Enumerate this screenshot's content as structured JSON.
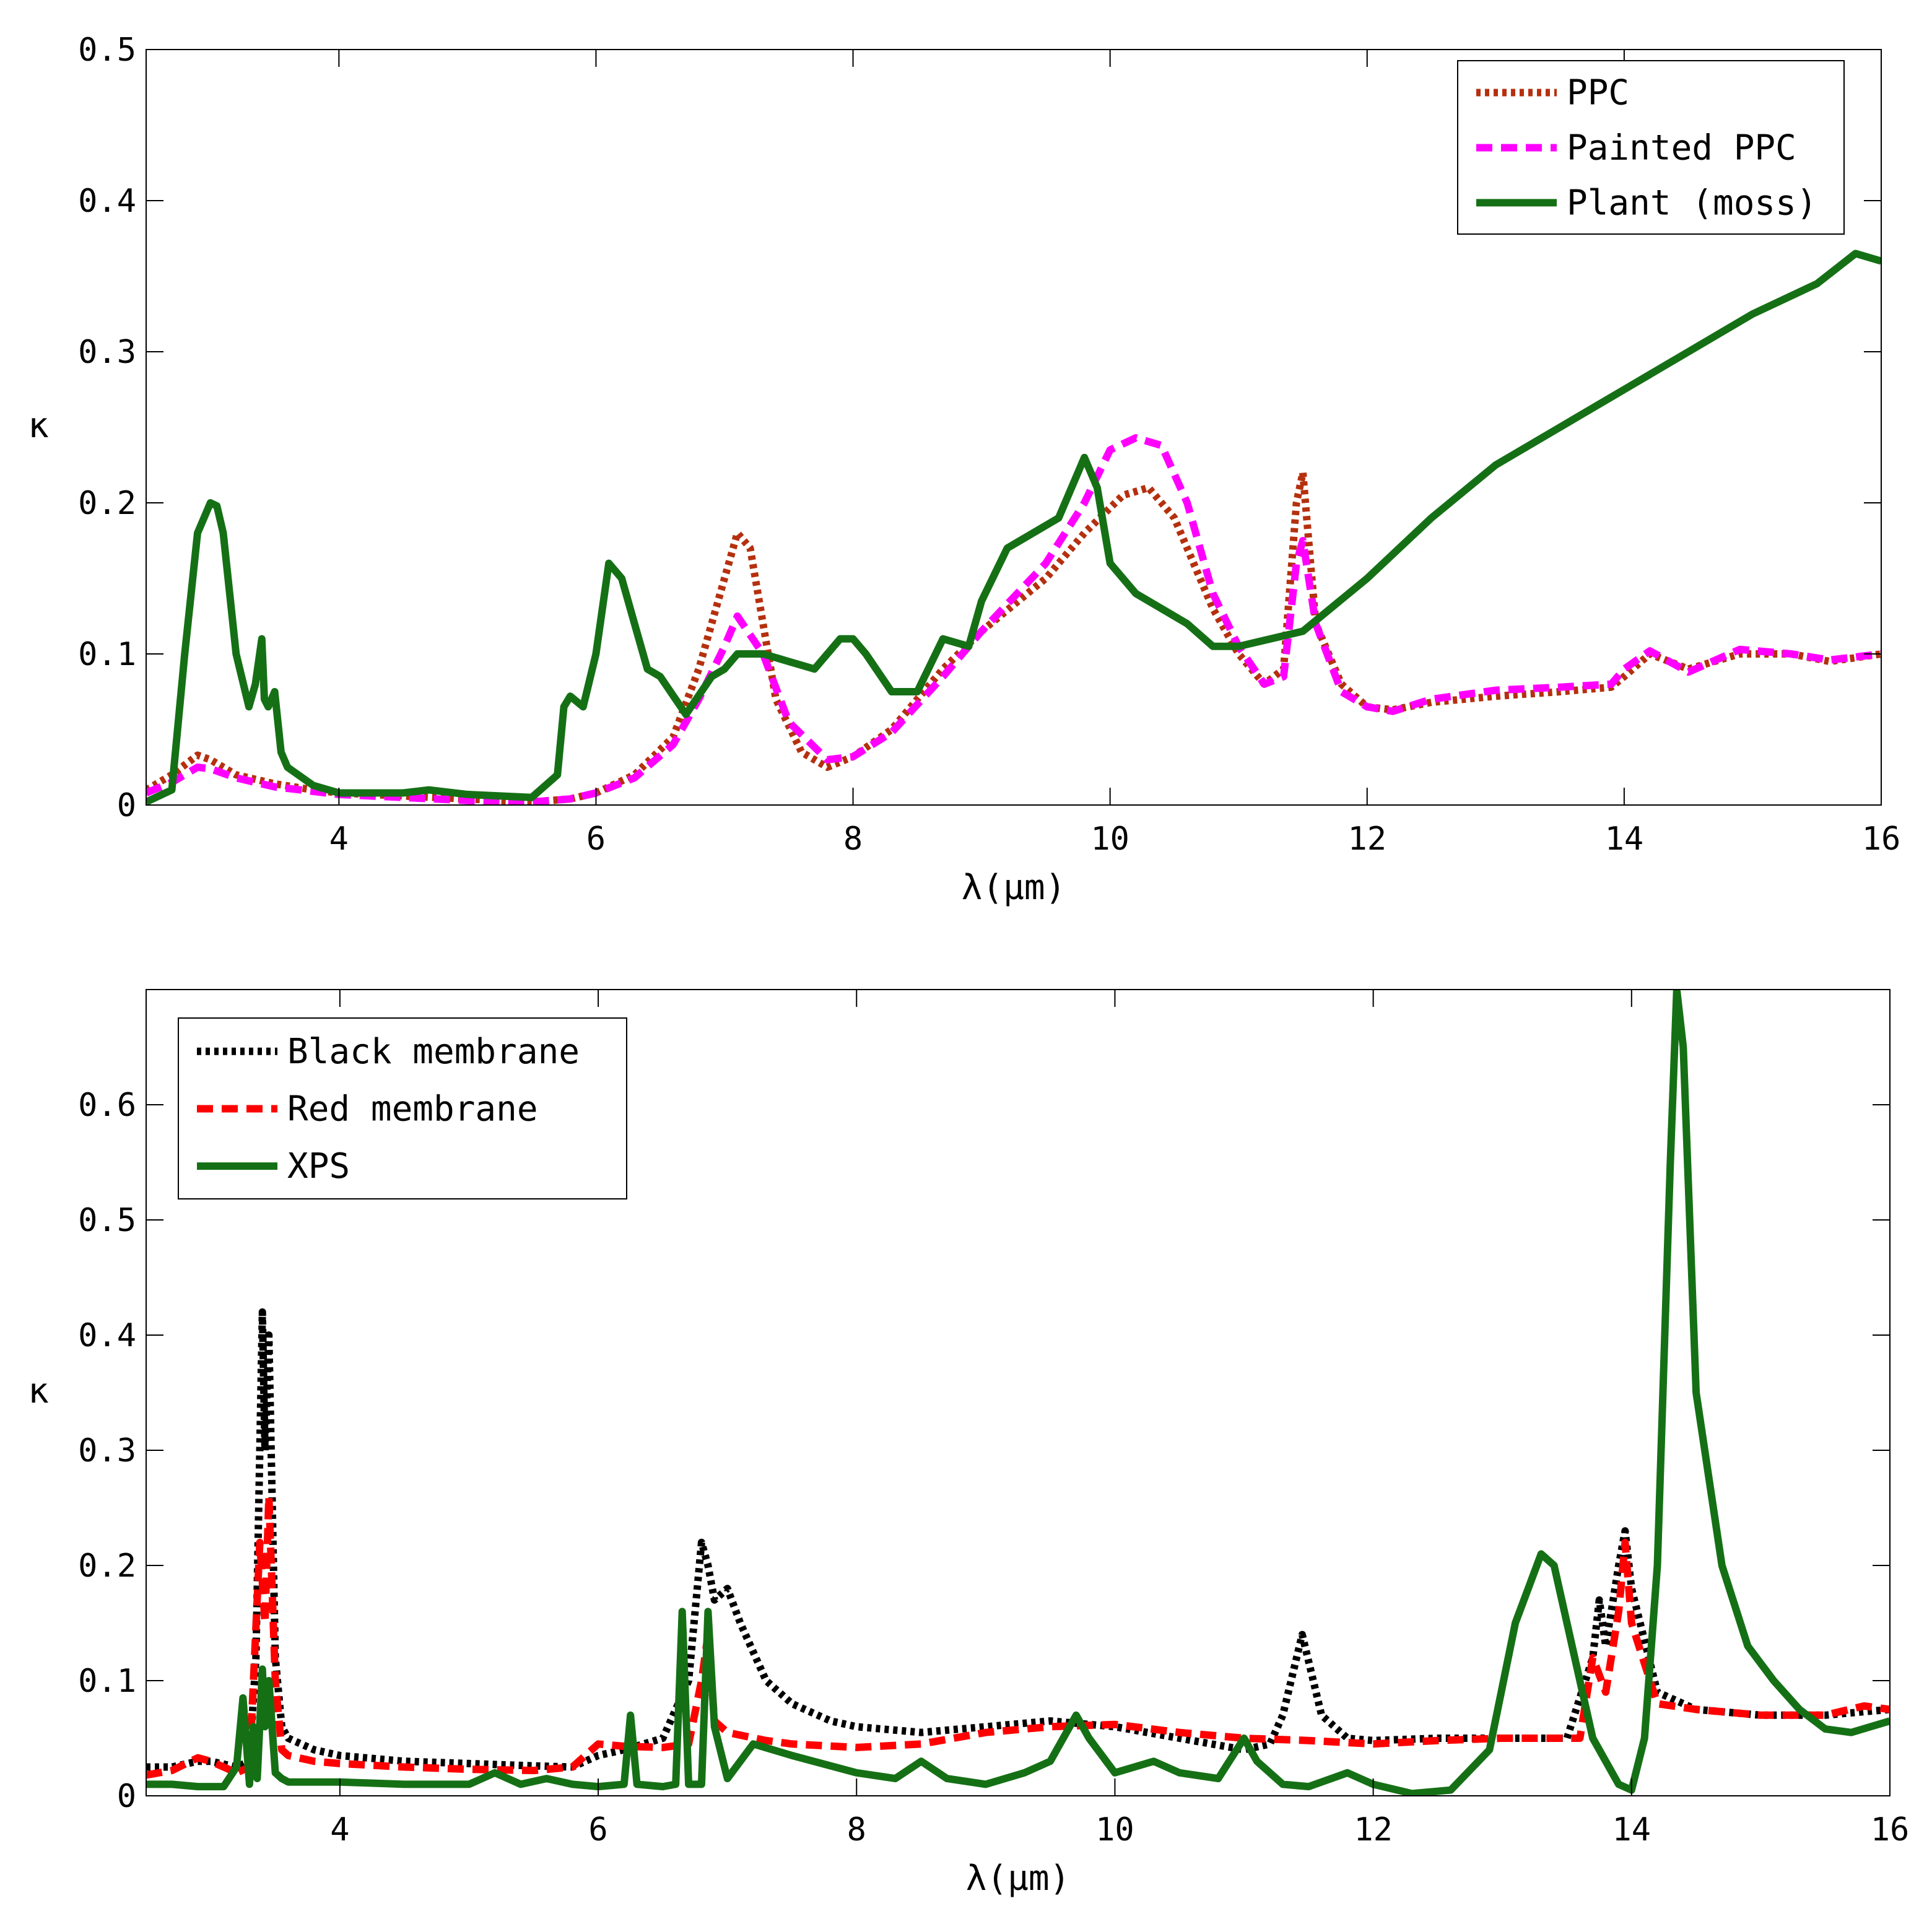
{
  "chart_data": [
    {
      "type": "line",
      "xlabel": "λ(μm)",
      "ylabel": "κ",
      "xlim": [
        2.5,
        16
      ],
      "ylim": [
        0,
        0.5
      ],
      "xticks": [
        4,
        6,
        8,
        10,
        12,
        14,
        16
      ],
      "yticks": [
        0,
        0.1,
        0.2,
        0.3,
        0.4,
        0.5
      ],
      "ytick_labels": [
        "0",
        "0.1",
        "0.2",
        "0.3",
        "0.4",
        "0.5"
      ],
      "legend_position": "top-right",
      "grid": false,
      "series": [
        {
          "name": "PPC",
          "color": "#b5300e",
          "style": "dotted",
          "x": [
            2.5,
            2.7,
            2.9,
            3.0,
            3.2,
            3.5,
            3.8,
            4.0,
            4.5,
            5.0,
            5.5,
            5.8,
            6.0,
            6.3,
            6.6,
            6.8,
            7.0,
            7.1,
            7.2,
            7.4,
            7.6,
            7.8,
            8.0,
            8.3,
            8.7,
            9.0,
            9.5,
            9.8,
            10.1,
            10.3,
            10.5,
            10.8,
            11.0,
            11.2,
            11.35,
            11.45,
            11.5,
            11.6,
            11.8,
            12.0,
            12.2,
            12.5,
            13.0,
            13.5,
            13.9,
            14.0,
            14.2,
            14.5,
            14.9,
            15.3,
            15.6,
            16.0
          ],
          "y": [
            0.01,
            0.02,
            0.033,
            0.03,
            0.02,
            0.014,
            0.01,
            0.008,
            0.006,
            0.004,
            0.002,
            0.004,
            0.008,
            0.02,
            0.045,
            0.09,
            0.15,
            0.18,
            0.17,
            0.07,
            0.035,
            0.025,
            0.032,
            0.05,
            0.09,
            0.115,
            0.15,
            0.18,
            0.205,
            0.21,
            0.19,
            0.13,
            0.1,
            0.08,
            0.09,
            0.2,
            0.22,
            0.12,
            0.08,
            0.065,
            0.063,
            0.068,
            0.072,
            0.075,
            0.078,
            0.085,
            0.1,
            0.09,
            0.1,
            0.1,
            0.095,
            0.1
          ]
        },
        {
          "name": "Painted PPC",
          "color": "#ff00ff",
          "style": "dashed",
          "x": [
            2.5,
            2.7,
            2.9,
            3.0,
            3.2,
            3.5,
            3.8,
            4.0,
            4.5,
            5.0,
            5.5,
            5.8,
            6.0,
            6.3,
            6.6,
            6.8,
            7.0,
            7.1,
            7.3,
            7.5,
            7.8,
            8.0,
            8.3,
            8.7,
            9.0,
            9.5,
            9.8,
            10.0,
            10.2,
            10.4,
            10.6,
            10.8,
            11.0,
            11.2,
            11.35,
            11.45,
            11.5,
            11.6,
            11.8,
            12.0,
            12.2,
            12.5,
            13.0,
            13.5,
            13.9,
            14.0,
            14.2,
            14.5,
            14.9,
            15.3,
            15.6,
            16.0
          ],
          "y": [
            0.008,
            0.015,
            0.025,
            0.024,
            0.018,
            0.012,
            0.009,
            0.007,
            0.005,
            0.003,
            0.002,
            0.004,
            0.008,
            0.018,
            0.04,
            0.07,
            0.105,
            0.125,
            0.1,
            0.055,
            0.03,
            0.032,
            0.048,
            0.085,
            0.115,
            0.16,
            0.2,
            0.235,
            0.243,
            0.238,
            0.2,
            0.14,
            0.105,
            0.08,
            0.085,
            0.16,
            0.175,
            0.12,
            0.075,
            0.065,
            0.062,
            0.07,
            0.076,
            0.078,
            0.08,
            0.09,
            0.102,
            0.088,
            0.103,
            0.1,
            0.096,
            0.1
          ]
        },
        {
          "name": "Plant (moss)",
          "color": "#157015",
          "style": "solid",
          "x": [
            2.5,
            2.7,
            2.8,
            2.9,
            3.0,
            3.05,
            3.1,
            3.2,
            3.3,
            3.35,
            3.4,
            3.42,
            3.45,
            3.5,
            3.55,
            3.6,
            3.8,
            4.0,
            4.5,
            4.7,
            5.0,
            5.5,
            5.7,
            5.75,
            5.8,
            5.9,
            6.0,
            6.1,
            6.2,
            6.3,
            6.4,
            6.5,
            6.7,
            6.9,
            7.0,
            7.1,
            7.3,
            7.5,
            7.7,
            7.9,
            8.0,
            8.1,
            8.3,
            8.5,
            8.7,
            8.9,
            9.0,
            9.2,
            9.4,
            9.6,
            9.8,
            9.9,
            10.0,
            10.2,
            10.4,
            10.6,
            10.8,
            11.0,
            11.5,
            12.0,
            12.5,
            13.0,
            13.5,
            14.0,
            14.5,
            15.0,
            15.5,
            15.8,
            16.0
          ],
          "y": [
            0.002,
            0.01,
            0.1,
            0.18,
            0.2,
            0.198,
            0.18,
            0.1,
            0.065,
            0.08,
            0.11,
            0.07,
            0.065,
            0.075,
            0.035,
            0.025,
            0.013,
            0.008,
            0.008,
            0.01,
            0.007,
            0.005,
            0.02,
            0.065,
            0.072,
            0.065,
            0.1,
            0.16,
            0.15,
            0.12,
            0.09,
            0.085,
            0.06,
            0.085,
            0.09,
            0.1,
            0.1,
            0.095,
            0.09,
            0.11,
            0.11,
            0.1,
            0.075,
            0.075,
            0.11,
            0.105,
            0.135,
            0.17,
            0.18,
            0.19,
            0.23,
            0.21,
            0.16,
            0.14,
            0.13,
            0.12,
            0.105,
            0.105,
            0.115,
            0.15,
            0.19,
            0.225,
            0.25,
            0.275,
            0.3,
            0.325,
            0.345,
            0.365,
            0.36
          ]
        }
      ]
    },
    {
      "type": "line",
      "xlabel": "λ(μm)",
      "ylabel": "κ",
      "xlim": [
        2.5,
        16
      ],
      "ylim": [
        0,
        0.7
      ],
      "xticks": [
        4,
        6,
        8,
        10,
        12,
        14,
        16
      ],
      "yticks": [
        0,
        0.1,
        0.2,
        0.3,
        0.4,
        0.5,
        0.6
      ],
      "ytick_labels": [
        "0",
        "0.1",
        "0.2",
        "0.3",
        "0.4",
        "0.5",
        "0.6"
      ],
      "legend_position": "top-left",
      "grid": false,
      "series": [
        {
          "name": "Black membrane",
          "color": "#000000",
          "style": "dotted",
          "x": [
            2.5,
            2.7,
            2.9,
            3.0,
            3.2,
            3.3,
            3.35,
            3.4,
            3.42,
            3.45,
            3.5,
            3.55,
            3.6,
            3.8,
            4.0,
            4.5,
            5.0,
            5.5,
            5.8,
            6.0,
            6.2,
            6.5,
            6.7,
            6.8,
            6.85,
            6.9,
            7.0,
            7.1,
            7.3,
            7.5,
            7.8,
            8.0,
            8.5,
            9.0,
            9.5,
            10.0,
            10.5,
            11.0,
            11.2,
            11.3,
            11.45,
            11.6,
            11.8,
            12.0,
            12.5,
            13.0,
            13.5,
            13.7,
            13.75,
            13.8,
            13.9,
            13.95,
            14.0,
            14.2,
            14.5,
            15.0,
            15.5,
            16.0
          ],
          "y": [
            0.025,
            0.025,
            0.03,
            0.03,
            0.025,
            0.03,
            0.12,
            0.42,
            0.3,
            0.4,
            0.12,
            0.06,
            0.05,
            0.04,
            0.035,
            0.03,
            0.028,
            0.026,
            0.025,
            0.035,
            0.04,
            0.05,
            0.1,
            0.22,
            0.2,
            0.17,
            0.18,
            0.15,
            0.1,
            0.08,
            0.065,
            0.06,
            0.055,
            0.06,
            0.065,
            0.06,
            0.05,
            0.04,
            0.045,
            0.07,
            0.14,
            0.07,
            0.05,
            0.048,
            0.05,
            0.05,
            0.05,
            0.12,
            0.17,
            0.13,
            0.2,
            0.23,
            0.18,
            0.09,
            0.075,
            0.07,
            0.07,
            0.075
          ]
        },
        {
          "name": "Red membrane",
          "color": "#ff0000",
          "style": "dashed",
          "x": [
            2.5,
            2.7,
            2.9,
            3.0,
            3.2,
            3.3,
            3.38,
            3.42,
            3.45,
            3.5,
            3.55,
            3.6,
            3.8,
            4.0,
            4.5,
            5.0,
            5.5,
            5.8,
            6.0,
            6.2,
            6.5,
            6.7,
            6.8,
            6.85,
            6.9,
            7.0,
            7.3,
            7.5,
            8.0,
            8.5,
            9.0,
            9.5,
            10.0,
            10.5,
            11.0,
            11.5,
            12.0,
            12.5,
            13.0,
            13.6,
            13.7,
            13.8,
            13.9,
            13.95,
            14.0,
            14.2,
            14.5,
            15.0,
            15.5,
            15.8,
            16.0
          ],
          "y": [
            0.018,
            0.022,
            0.033,
            0.03,
            0.02,
            0.025,
            0.22,
            0.15,
            0.26,
            0.1,
            0.04,
            0.035,
            0.03,
            0.028,
            0.025,
            0.023,
            0.022,
            0.025,
            0.045,
            0.043,
            0.042,
            0.045,
            0.1,
            0.14,
            0.065,
            0.055,
            0.048,
            0.045,
            0.042,
            0.045,
            0.055,
            0.06,
            0.062,
            0.055,
            0.05,
            0.048,
            0.045,
            0.048,
            0.05,
            0.05,
            0.12,
            0.09,
            0.16,
            0.22,
            0.15,
            0.08,
            0.075,
            0.07,
            0.07,
            0.078,
            0.075
          ]
        },
        {
          "name": "XPS",
          "color": "#157015",
          "style": "solid",
          "x": [
            2.5,
            2.7,
            2.9,
            3.1,
            3.2,
            3.25,
            3.3,
            3.33,
            3.36,
            3.4,
            3.42,
            3.45,
            3.5,
            3.55,
            3.6,
            3.8,
            4.0,
            4.5,
            5.0,
            5.2,
            5.4,
            5.6,
            5.8,
            6.0,
            6.2,
            6.25,
            6.3,
            6.5,
            6.6,
            6.65,
            6.7,
            6.8,
            6.85,
            6.9,
            7.0,
            7.2,
            7.5,
            8.0,
            8.3,
            8.5,
            8.7,
            9.0,
            9.3,
            9.5,
            9.7,
            9.8,
            10.0,
            10.3,
            10.5,
            10.8,
            11.0,
            11.1,
            11.3,
            11.5,
            11.8,
            12.0,
            12.3,
            12.6,
            12.9,
            13.1,
            13.3,
            13.4,
            13.5,
            13.7,
            13.9,
            14.0,
            14.1,
            14.2,
            14.3,
            14.35,
            14.4,
            14.5,
            14.7,
            14.9,
            15.1,
            15.3,
            15.5,
            15.7,
            16.0
          ],
          "y": [
            0.01,
            0.01,
            0.008,
            0.008,
            0.025,
            0.085,
            0.01,
            0.06,
            0.015,
            0.11,
            0.06,
            0.1,
            0.02,
            0.015,
            0.012,
            0.012,
            0.012,
            0.01,
            0.01,
            0.02,
            0.01,
            0.015,
            0.01,
            0.008,
            0.01,
            0.07,
            0.01,
            0.008,
            0.01,
            0.16,
            0.01,
            0.01,
            0.16,
            0.06,
            0.015,
            0.045,
            0.035,
            0.02,
            0.015,
            0.03,
            0.015,
            0.01,
            0.02,
            0.03,
            0.07,
            0.05,
            0.02,
            0.03,
            0.02,
            0.015,
            0.05,
            0.03,
            0.01,
            0.008,
            0.02,
            0.01,
            0.002,
            0.005,
            0.04,
            0.15,
            0.21,
            0.2,
            0.15,
            0.05,
            0.01,
            0.005,
            0.05,
            0.2,
            0.55,
            0.7,
            0.65,
            0.35,
            0.2,
            0.13,
            0.1,
            0.075,
            0.058,
            0.055,
            0.065
          ]
        }
      ]
    }
  ]
}
